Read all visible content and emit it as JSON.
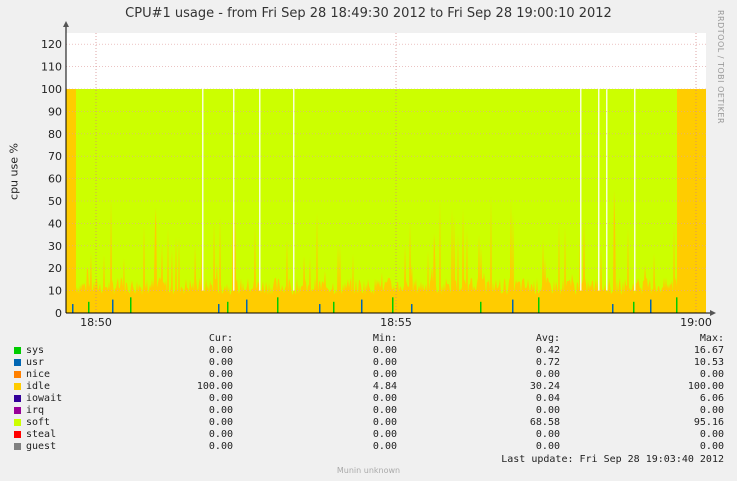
{
  "chart_data": {
    "type": "area",
    "title": "CPU#1 usage - from Fri Sep 28 18:49:30 2012 to Fri Sep 28 19:00:10 2012",
    "ylabel": "cpu use %",
    "ylim": [
      0,
      125
    ],
    "yticks": [
      0,
      10,
      20,
      30,
      40,
      50,
      60,
      70,
      80,
      90,
      100,
      110,
      120
    ],
    "xlim": [
      "18:49:30",
      "19:00:10"
    ],
    "xticks": [
      "18:50",
      "18:55",
      "19:00"
    ],
    "stacked": true,
    "grid": true,
    "series": [
      {
        "name": "sys",
        "color": "#00cc00",
        "cur": "0.00",
        "min": "0.00",
        "avg": "0.42",
        "max": "16.67"
      },
      {
        "name": "usr",
        "color": "#0066b3",
        "cur": "0.00",
        "min": "0.00",
        "avg": "0.72",
        "max": "10.53"
      },
      {
        "name": "nice",
        "color": "#ff8000",
        "cur": "0.00",
        "min": "0.00",
        "avg": "0.00",
        "max": "0.00"
      },
      {
        "name": "idle",
        "color": "#ffcc00",
        "cur": "100.00",
        "min": "4.84",
        "avg": "30.24",
        "max": "100.00"
      },
      {
        "name": "iowait",
        "color": "#330099",
        "cur": "0.00",
        "min": "0.00",
        "avg": "0.04",
        "max": "6.06"
      },
      {
        "name": "irq",
        "color": "#990099",
        "cur": "0.00",
        "min": "0.00",
        "avg": "0.00",
        "max": "0.00"
      },
      {
        "name": "soft",
        "color": "#ccff00",
        "cur": "0.00",
        "min": "0.00",
        "avg": "68.58",
        "max": "95.16"
      },
      {
        "name": "steal",
        "color": "#ff0000",
        "cur": "0.00",
        "min": "0.00",
        "avg": "0.00",
        "max": "0.00"
      },
      {
        "name": "guest",
        "color": "#808080",
        "cur": "0.00",
        "min": "0.00",
        "avg": "0.00",
        "max": "0.00"
      }
    ]
  },
  "legend_headers": {
    "cur": "Cur:",
    "min": "Min:",
    "avg": "Avg:",
    "max": "Max:"
  },
  "watermark": "RRDTOOL / TOBI OETIKER",
  "footer": {
    "last_update": "Last update:  Fri Sep 28 19:03:40 2012",
    "generator": "Munin unknown"
  }
}
